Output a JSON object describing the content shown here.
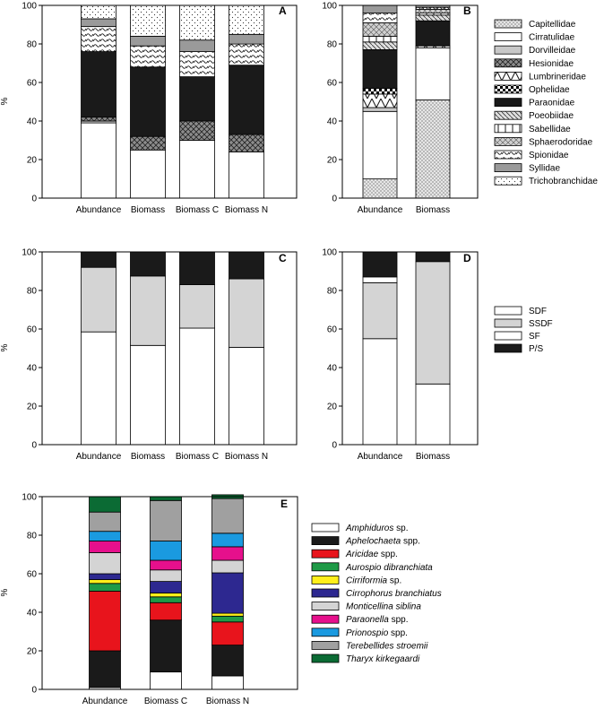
{
  "chart_data": [
    {
      "type": "stacked-bar",
      "panel_label": "A",
      "ylabel": "%",
      "ylim": [
        0,
        100
      ],
      "yticks": [
        0,
        20,
        40,
        60,
        80,
        100
      ],
      "categories": [
        "Abundance",
        "Biomass",
        "Biomass C",
        "Biomass N"
      ],
      "series": [
        {
          "name": "Capitellidae",
          "pattern": "dots-dense",
          "values": [
            0,
            0,
            0,
            0
          ]
        },
        {
          "name": "Cirratulidae",
          "pattern": "white",
          "values": [
            39,
            25,
            30,
            24
          ]
        },
        {
          "name": "Dorvilleidae",
          "pattern": "lightgray",
          "values": [
            1,
            0,
            0,
            0
          ]
        },
        {
          "name": "Hesionidae",
          "pattern": "crosshatch",
          "values": [
            2,
            7,
            10,
            9
          ]
        },
        {
          "name": "Lumbrineridae",
          "pattern": "zigzag",
          "values": [
            0,
            0,
            0,
            0
          ]
        },
        {
          "name": "Ophelidae",
          "pattern": "checker",
          "values": [
            0,
            0,
            0,
            0
          ]
        },
        {
          "name": "Paraonidae",
          "pattern": "black",
          "values": [
            34,
            36,
            23,
            36
          ]
        },
        {
          "name": "Poeobiidae",
          "pattern": "diagonal",
          "values": [
            0,
            0,
            0,
            0
          ]
        },
        {
          "name": "Sabellidae",
          "pattern": "bricks",
          "values": [
            0,
            0,
            0,
            0
          ]
        },
        {
          "name": "Sphaerodoridae",
          "pattern": "diamonds",
          "values": [
            0,
            0,
            0,
            0
          ]
        },
        {
          "name": "Spionidae",
          "pattern": "waves",
          "values": [
            13,
            11,
            13,
            11
          ]
        },
        {
          "name": "Syllidae",
          "pattern": "gray",
          "values": [
            4,
            5,
            6,
            5
          ]
        },
        {
          "name": "Trichobranchidae",
          "pattern": "dots-sparse",
          "values": [
            7,
            16,
            18,
            15
          ]
        }
      ]
    },
    {
      "type": "stacked-bar",
      "panel_label": "B",
      "ylim": [
        0,
        100
      ],
      "yticks": [
        0,
        20,
        40,
        60,
        80,
        100
      ],
      "categories": [
        "Abundance",
        "Biomass"
      ],
      "legend_title": "",
      "series": [
        {
          "name": "Capitellidae",
          "pattern": "dots-dense",
          "values": [
            10,
            51
          ]
        },
        {
          "name": "Cirratulidae",
          "pattern": "white",
          "values": [
            35,
            27
          ]
        },
        {
          "name": "Dorvilleidae",
          "pattern": "lightgray",
          "values": [
            2,
            0
          ]
        },
        {
          "name": "Hesionidae",
          "pattern": "crosshatch",
          "values": [
            0,
            0
          ]
        },
        {
          "name": "Lumbrineridae",
          "pattern": "zigzag",
          "values": [
            7,
            1
          ]
        },
        {
          "name": "Ophelidae",
          "pattern": "checker",
          "values": [
            3,
            0
          ]
        },
        {
          "name": "Paraonidae",
          "pattern": "black",
          "values": [
            20,
            13
          ]
        },
        {
          "name": "Poeobiidae",
          "pattern": "diagonal",
          "values": [
            4,
            3
          ]
        },
        {
          "name": "Sabellidae",
          "pattern": "bricks",
          "values": [
            3,
            1
          ]
        },
        {
          "name": "Sphaerodoridae",
          "pattern": "diamonds",
          "values": [
            7,
            2
          ]
        },
        {
          "name": "Spionidae",
          "pattern": "waves",
          "values": [
            5,
            1
          ]
        },
        {
          "name": "Syllidae",
          "pattern": "gray",
          "values": [
            4,
            1
          ]
        },
        {
          "name": "Trichobranchidae",
          "pattern": "dots-sparse",
          "values": [
            0,
            0
          ]
        }
      ],
      "legend": [
        "Capitellidae",
        "Cirratulidae",
        "Dorvilleidae",
        "Hesionidae",
        "Lumbrineridae",
        "Ophelidae",
        "Paraonidae",
        "Poeobiidae",
        "Sabellidae",
        "Sphaerodoridae",
        "Spionidae",
        "Syllidae",
        "Trichobranchidae"
      ]
    },
    {
      "type": "stacked-bar",
      "panel_label": "C",
      "ylabel": "%",
      "ylim": [
        0,
        100
      ],
      "yticks": [
        0,
        20,
        40,
        60,
        80,
        100
      ],
      "categories": [
        "Abundance",
        "Biomass",
        "Biomass C",
        "Biomass N"
      ],
      "series": [
        {
          "name": "SDF",
          "color": "#ffffff",
          "values": [
            58.5,
            51.5,
            60.5,
            50.5
          ]
        },
        {
          "name": "SSDF",
          "color": "#d4d4d4",
          "values": [
            33.5,
            36,
            22.5,
            35.5
          ]
        },
        {
          "name": "SF",
          "color": "#ffffff",
          "values": [
            0,
            0,
            0,
            0
          ]
        },
        {
          "name": "P/S",
          "color": "#1a1a1a",
          "values": [
            8,
            12.5,
            17,
            14
          ]
        }
      ]
    },
    {
      "type": "stacked-bar",
      "panel_label": "D",
      "ylim": [
        0,
        100
      ],
      "yticks": [
        0,
        20,
        40,
        60,
        80,
        100
      ],
      "categories": [
        "Abundance",
        "Biomass"
      ],
      "series": [
        {
          "name": "SDF",
          "color": "#ffffff",
          "values": [
            55,
            31.5
          ]
        },
        {
          "name": "SSDF",
          "color": "#d4d4d4",
          "values": [
            29,
            63.5
          ]
        },
        {
          "name": "SF",
          "color": "#ffffff",
          "values": [
            3,
            0
          ]
        },
        {
          "name": "P/S",
          "color": "#1a1a1a",
          "values": [
            13,
            5
          ]
        }
      ],
      "legend": [
        "SDF",
        "SSDF",
        "SF",
        "P/S"
      ]
    },
    {
      "type": "stacked-bar",
      "panel_label": "E",
      "ylabel": "%",
      "ylim": [
        0,
        100
      ],
      "yticks": [
        0,
        20,
        40,
        60,
        80,
        100
      ],
      "categories": [
        "Abundance",
        "Biomass C",
        "Biomass N"
      ],
      "series": [
        {
          "name": "Amphiduros sp.",
          "color": "#ffffff",
          "values": [
            1,
            9,
            7
          ]
        },
        {
          "name": "Aphelochaeta spp.",
          "color": "#1a1a1a",
          "values": [
            19,
            27,
            16
          ]
        },
        {
          "name": "Aricidae spp.",
          "color": "#e8141c",
          "values": [
            31,
            9,
            12
          ]
        },
        {
          "name": "Aurospio dibranchiata",
          "color": "#1f9a47",
          "values": [
            4,
            3,
            3
          ]
        },
        {
          "name": "Cirriformia sp.",
          "color": "#ffef1a",
          "values": [
            2,
            2,
            1.5
          ]
        },
        {
          "name": "Cirrophorus branchiatus",
          "color": "#2d2890",
          "values": [
            3,
            6,
            21
          ]
        },
        {
          "name": "Monticellina siblina",
          "color": "#d4d4d4",
          "values": [
            11,
            6,
            6.5
          ]
        },
        {
          "name": "Paraonella spp.",
          "color": "#e6108c",
          "values": [
            6,
            5,
            7
          ]
        },
        {
          "name": "Prionospio spp.",
          "color": "#1a9ae0",
          "values": [
            5,
            10,
            7
          ]
        },
        {
          "name": "Terebellides stroemii",
          "color": "#a0a0a0",
          "values": [
            10,
            21,
            18
          ]
        },
        {
          "name": "Tharyx kirkegaardi",
          "color": "#0b6b34",
          "values": [
            8,
            2,
            2
          ]
        }
      ],
      "legend": [
        "Amphiduros sp.",
        "Aphelochaeta spp.",
        "Aricidae spp.",
        "Aurospio dibranchiata",
        "Cirriformia sp.",
        "Cirrophorus branchiatus",
        "Monticellina siblina",
        "Paraonella spp.",
        "Prionospio spp.",
        "Terebellides stroemii",
        "Tharyx kirkegaardi"
      ]
    }
  ]
}
